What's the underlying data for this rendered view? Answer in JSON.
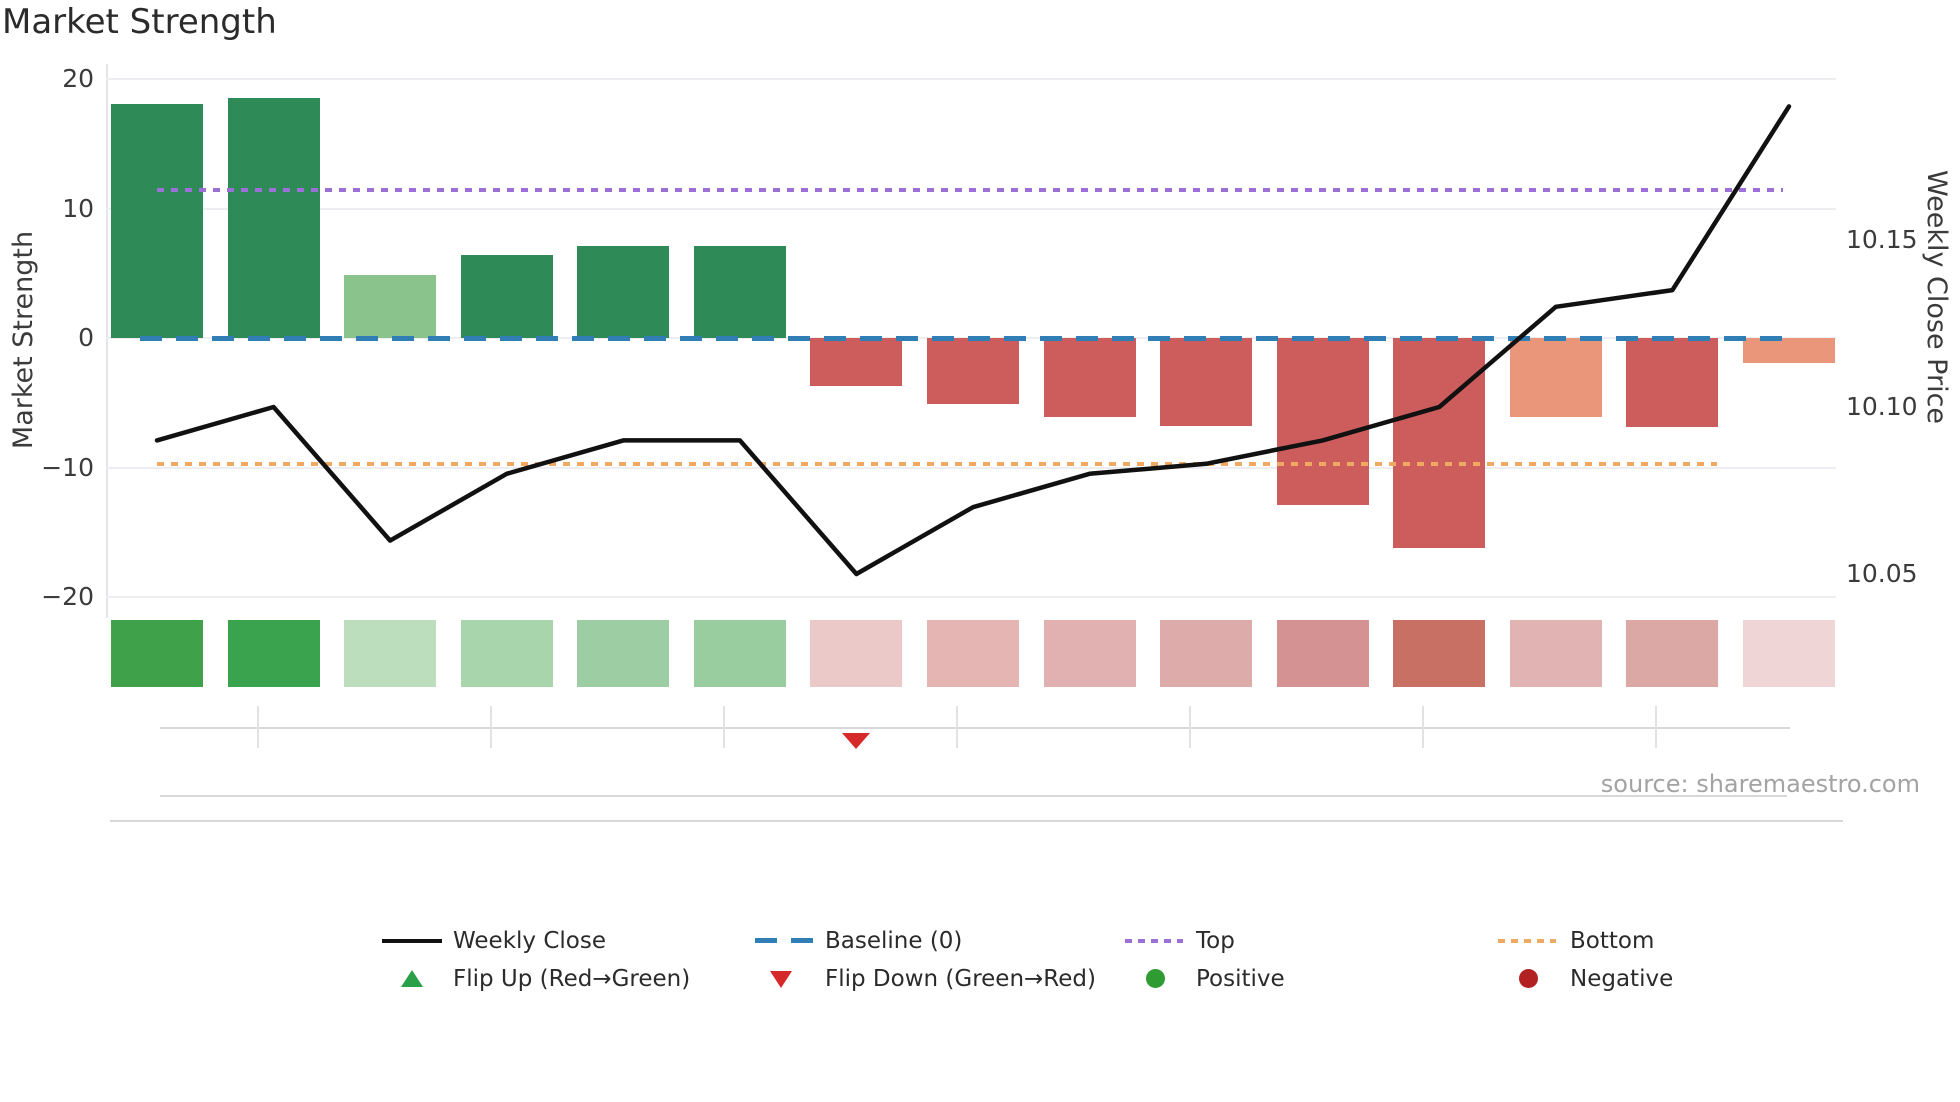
{
  "title": "Market Strength",
  "source": "source: sharemaestro.com",
  "left_axis": {
    "label": "Market Strength",
    "ticks": [
      {
        "label": "20",
        "value": 20
      },
      {
        "label": "10",
        "value": 10
      },
      {
        "label": "0",
        "value": 0
      },
      {
        "label": "−10",
        "value": -10
      },
      {
        "label": "−20",
        "value": -20
      }
    ]
  },
  "right_axis": {
    "label": "Weekly Close Price",
    "ticks": [
      {
        "label": "10.15",
        "value": 10.15
      },
      {
        "label": "10.10",
        "value": 10.1
      },
      {
        "label": "10.05",
        "value": 10.05
      }
    ]
  },
  "legend": {
    "weekly_close": "Weekly Close",
    "baseline": "Baseline (0)",
    "top": "Top",
    "bottom": "Bottom",
    "flip_up": "Flip Up (Red→Green)",
    "flip_down": "Flip Down (Green→Red)",
    "positive": "Positive",
    "negative": "Negative"
  },
  "colors": {
    "bar_positive": "#2e8b57",
    "bar_positive_weak": "#8ac48c",
    "bar_negative": "#cd5c5c",
    "bar_negative_weak": "#e9967a",
    "price_line": "#111111",
    "baseline": "#2f7fb6",
    "top_line": "#9d6fd8",
    "bottom_line": "#f0a963",
    "flip_up_marker": "#2aa148",
    "flip_down_marker": "#d62a2a",
    "positive_dot": "#2e9b33",
    "negative_dot": "#b22222",
    "grid": "#ededf2"
  },
  "chart_data": {
    "type": "combo",
    "x": [
      1,
      2,
      3,
      4,
      5,
      6,
      7,
      8,
      9,
      10,
      11,
      12,
      13,
      14,
      15
    ],
    "x_tick_labels_visible": false,
    "series": [
      {
        "name": "Market Strength",
        "type": "bar",
        "axis": "left",
        "ylim": [
          -20,
          20
        ],
        "values": [
          18.1,
          18.5,
          4.9,
          6.4,
          7.1,
          7.1,
          -3.7,
          -5.1,
          -6.1,
          -6.8,
          -12.9,
          -16.2,
          -6.1,
          -6.9,
          -1.9
        ],
        "bar_colors": [
          "#2e8b57",
          "#2e8b57",
          "#8ac48c",
          "#2e8b57",
          "#2e8b57",
          "#2e8b57",
          "#cd5c5c",
          "#cd5c5c",
          "#cd5c5c",
          "#cd5c5c",
          "#cd5c5c",
          "#cd5c5c",
          "#e9967a",
          "#cd5c5c",
          "#e9967a"
        ]
      },
      {
        "name": "Weekly Close",
        "type": "line",
        "axis": "right",
        "values": [
          10.09,
          10.1,
          10.06,
          10.08,
          10.09,
          10.09,
          10.05,
          10.07,
          10.08,
          10.083,
          10.09,
          10.1,
          10.13,
          10.135,
          10.19
        ]
      },
      {
        "name": "Baseline (0)",
        "type": "hline",
        "axis": "left",
        "value": 0
      },
      {
        "name": "Top",
        "type": "hline",
        "axis": "right",
        "value": 10.165
      },
      {
        "name": "Bottom",
        "type": "hline",
        "axis": "right",
        "value": 10.083
      }
    ],
    "heatmap_strip": {
      "colors": [
        "#3fa24b",
        "#3aa34d",
        "#bcdebd",
        "#a8d5ac",
        "#9dcea3",
        "#99cc9f",
        "#ecc9c9",
        "#e4b5b2",
        "#e0b1b0",
        "#ddabaa",
        "#d49392",
        "#c87063",
        "#e2b3b3",
        "#dca8a5",
        "#efd5d6"
      ]
    },
    "markers": [
      {
        "name": "Flip Down (Green→Red)",
        "shape": "triangle-down",
        "x_index": 6,
        "color": "#d62a2a"
      }
    ],
    "legend_position": "bottom",
    "grid": "horizontal-light"
  }
}
